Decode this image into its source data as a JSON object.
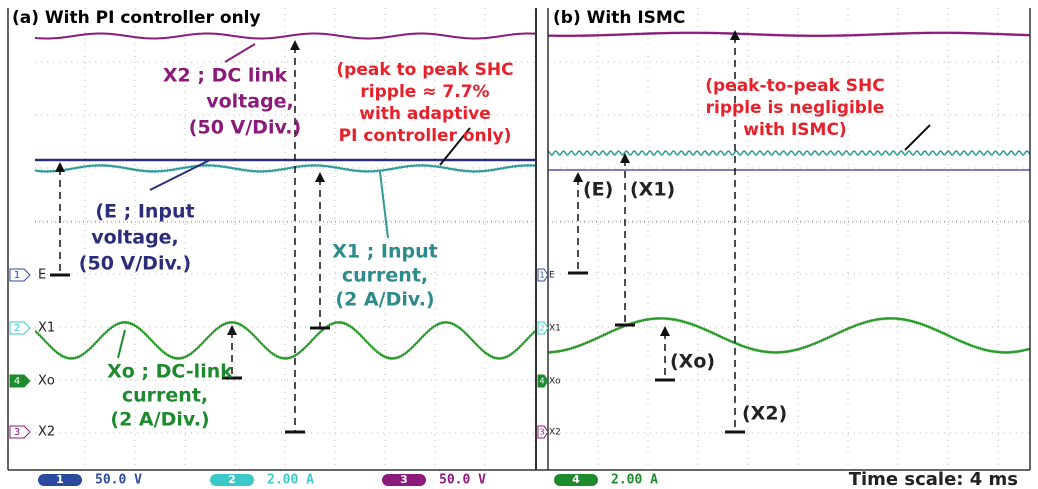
{
  "panel_a": {
    "title": "(a) With PI controller only",
    "x2_label": [
      "X2 ; DC link",
      "voltage,",
      "(50 V/Div.)"
    ],
    "ripple_note": [
      "(peak to peak SHC",
      "ripple ≈ 7.7%",
      "with adaptive",
      "PI controller only)"
    ],
    "e_label": [
      "(E ; Input",
      "voltage,",
      "(50 V/Div.)"
    ],
    "x1_label": [
      "X1 ; Input",
      "current,",
      "(2 A/Div.)"
    ],
    "xo_label": [
      "Xo ; DC-link",
      "current,",
      "(2 A/Div.)"
    ],
    "channels": [
      {
        "number": "1",
        "name": "E"
      },
      {
        "number": "2",
        "name": "X1"
      },
      {
        "number": "4",
        "name": "Xo"
      },
      {
        "number": "3",
        "name": "X2"
      }
    ]
  },
  "panel_b": {
    "title": "(b) With ISMC",
    "ripple_note": [
      "(peak-to-peak SHC",
      "ripple is negligible",
      "with ISMC)"
    ],
    "labels": [
      "(E)",
      "(X1)",
      "(Xo)",
      "(X2)"
    ],
    "channels": [
      {
        "number": "1",
        "name": "E"
      },
      {
        "number": "2",
        "name": "X1"
      },
      {
        "number": "4",
        "name": "Xo"
      },
      {
        "number": "3",
        "name": "X2"
      }
    ]
  },
  "status_bar": {
    "readouts": [
      {
        "number": "1",
        "scale": "50.0 V"
      },
      {
        "number": "2",
        "scale": "2.00 A"
      },
      {
        "number": "3",
        "scale": "50.0 V"
      },
      {
        "number": "4",
        "scale": "2.00 A"
      }
    ],
    "time_scale": "Time scale: 4 ms"
  }
}
